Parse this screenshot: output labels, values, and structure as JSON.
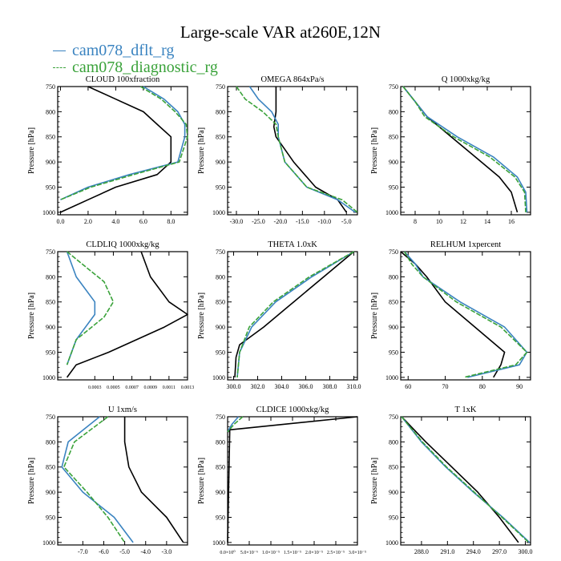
{
  "title": "Large-scale VAR at260E,12N",
  "legend": [
    {
      "name": "cam078_dflt_rg",
      "color": "#3a83c0",
      "dash": "none"
    },
    {
      "name": "cam078_diagnostic_rg",
      "color": "#3aa23a",
      "dash": "6,2"
    }
  ],
  "colors": {
    "obs": "#000000"
  },
  "ylabel": "Pressure [hPa]",
  "chart_data": [
    {
      "type": "line",
      "title": "CLOUD  100xfraction",
      "xlim": [
        -0.2,
        9.2
      ],
      "xticks": [
        0,
        2,
        4,
        6,
        8
      ],
      "xticklabels": [
        "0.0",
        "2.0",
        "4.0",
        "6.0",
        "8.0"
      ],
      "ylim": [
        1005,
        750
      ],
      "yticks": [
        750,
        800,
        850,
        900,
        950,
        1000
      ],
      "series": [
        {
          "role": "black",
          "x": [
            2,
            4,
            6,
            7,
            8,
            8,
            7,
            4,
            2,
            0
          ],
          "y": [
            750,
            775,
            800,
            825,
            850,
            900,
            925,
            950,
            975,
            1000
          ]
        },
        {
          "role": "blue",
          "x": [
            6,
            7.5,
            8.5,
            9,
            9,
            8.5,
            5,
            2,
            0
          ],
          "y": [
            750,
            775,
            800,
            825,
            850,
            900,
            925,
            950,
            975
          ]
        },
        {
          "role": "green",
          "x": [
            5.8,
            7.3,
            8.3,
            9.1,
            9.2,
            8.6,
            5.3,
            2.2,
            0
          ],
          "y": [
            750,
            775,
            800,
            825,
            850,
            900,
            925,
            950,
            975
          ]
        }
      ]
    },
    {
      "type": "line",
      "title": "OMEGA  864xPa/s",
      "xlim": [
        -32,
        -2.5
      ],
      "xticks": [
        -30,
        -25,
        -20,
        -15,
        -10,
        -5
      ],
      "xticklabels": [
        "-30.0",
        "-25.0",
        "-20.0",
        "-15.0",
        "-10.0",
        "-5.0"
      ],
      "ylim": [
        1005,
        750
      ],
      "yticks": [
        750,
        800,
        850,
        900,
        950,
        1000
      ],
      "series": [
        {
          "role": "black",
          "x": [
            -21,
            -21,
            -21,
            -21.5,
            -21,
            -17,
            -12,
            -7,
            -5
          ],
          "y": [
            750,
            775,
            800,
            830,
            850,
            900,
            950,
            975,
            1000
          ]
        },
        {
          "role": "blue",
          "x": [
            -27,
            -25,
            -22,
            -20.5,
            -20.5,
            -19,
            -14,
            -7,
            -3
          ],
          "y": [
            750,
            775,
            800,
            825,
            850,
            900,
            950,
            975,
            1000
          ]
        },
        {
          "role": "green",
          "x": [
            -30,
            -28,
            -24,
            -21,
            -20.5,
            -19,
            -14,
            -6,
            -2.5
          ],
          "y": [
            750,
            775,
            800,
            825,
            850,
            900,
            950,
            975,
            1000
          ]
        }
      ]
    },
    {
      "type": "line",
      "title": "Q  1000xkg/kg",
      "xlim": [
        6.8,
        17.6
      ],
      "xticks": [
        8,
        10,
        12,
        14,
        16
      ],
      "xticklabels": [
        "8",
        "10",
        "12",
        "14",
        "16"
      ],
      "ylim": [
        1005,
        750
      ],
      "yticks": [
        750,
        800,
        850,
        900,
        950,
        1000
      ],
      "series": [
        {
          "role": "black",
          "x": [
            7,
            8,
            9,
            11,
            13,
            15,
            16,
            16.5
          ],
          "y": [
            750,
            780,
            810,
            850,
            890,
            930,
            960,
            1000
          ]
        },
        {
          "role": "blue",
          "x": [
            7,
            8,
            9,
            11.5,
            14.5,
            16.5,
            17.2,
            17.3
          ],
          "y": [
            750,
            780,
            810,
            850,
            890,
            930,
            960,
            1000
          ]
        },
        {
          "role": "green",
          "x": [
            7,
            8,
            8.8,
            11.2,
            14.2,
            16.3,
            17.1,
            17.2
          ],
          "y": [
            750,
            780,
            810,
            850,
            890,
            930,
            960,
            1000
          ]
        }
      ]
    },
    {
      "type": "line",
      "title": "CLDLIQ  1000xkg/kg",
      "xlim": [
        -0.0001,
        0.0013
      ],
      "xticks": [
        0.0003,
        0.0005,
        0.0007,
        0.0009,
        0.0011,
        0.0013
      ],
      "xticklabels": [
        "0.0003",
        "0.0005",
        "0.0007",
        "0.0009",
        "0.0011",
        "0.0013"
      ],
      "ylim": [
        1005,
        750
      ],
      "yticks": [
        750,
        800,
        850,
        900,
        950,
        1000
      ],
      "series": [
        {
          "role": "black",
          "x": [
            0.0008,
            0.0009,
            0.0011,
            0.0013,
            0.00105,
            0.00045,
            0.0001,
            0
          ],
          "y": [
            750,
            800,
            850,
            875,
            900,
            950,
            975,
            1000
          ]
        },
        {
          "role": "blue",
          "x": [
            0,
            0.0001,
            0.0003,
            0.0003,
            0.0001,
            0
          ],
          "y": [
            750,
            800,
            850,
            875,
            925,
            975
          ]
        },
        {
          "role": "green",
          "x": [
            0,
            0.0002,
            0.0004,
            0.0005,
            0.0004,
            0.0001,
            0
          ],
          "y": [
            750,
            780,
            810,
            850,
            880,
            925,
            975
          ]
        }
      ]
    },
    {
      "type": "line",
      "title": "THETA  1.0xK",
      "xlim": [
        299.5,
        310.3
      ],
      "xticks": [
        300,
        302,
        304,
        306,
        308,
        310
      ],
      "xticklabels": [
        "300.0",
        "302.0",
        "304.0",
        "306.0",
        "308.0",
        "310.0"
      ],
      "ylim": [
        1005,
        750
      ],
      "yticks": [
        750,
        800,
        850,
        900,
        950,
        1000
      ],
      "series": [
        {
          "role": "black",
          "x": [
            310,
            307.5,
            305,
            302.5,
            300.5,
            300.2,
            300.1
          ],
          "y": [
            750,
            800,
            850,
            900,
            935,
            960,
            1000
          ]
        },
        {
          "role": "blue",
          "x": [
            310,
            306.5,
            303.5,
            301.5,
            300.5,
            300.3
          ],
          "y": [
            750,
            800,
            850,
            900,
            950,
            1000
          ]
        },
        {
          "role": "green",
          "x": [
            310,
            306.3,
            303.3,
            301.3,
            300.5,
            300.3
          ],
          "y": [
            750,
            800,
            850,
            900,
            950,
            1000
          ]
        }
      ]
    },
    {
      "type": "line",
      "title": "RELHUM  1xpercent",
      "xlim": [
        58,
        93
      ],
      "xticks": [
        60,
        70,
        80,
        90
      ],
      "xticklabels": [
        "60",
        "70",
        "80",
        "90"
      ],
      "ylim": [
        1005,
        750
      ],
      "yticks": [
        750,
        800,
        850,
        900,
        950,
        1000
      ],
      "series": [
        {
          "role": "black",
          "x": [
            58,
            62,
            65,
            70,
            78,
            86,
            85,
            83
          ],
          "y": [
            750,
            775,
            800,
            850,
            900,
            950,
            975,
            1000
          ]
        },
        {
          "role": "blue",
          "x": [
            59,
            62,
            64,
            74,
            86,
            92,
            90,
            76
          ],
          "y": [
            750,
            775,
            800,
            850,
            900,
            950,
            975,
            1000
          ]
        },
        {
          "role": "green",
          "x": [
            59,
            61,
            64,
            73,
            85,
            92,
            89,
            75
          ],
          "y": [
            750,
            775,
            800,
            850,
            900,
            950,
            975,
            1000
          ]
        }
      ]
    },
    {
      "type": "line",
      "title": "U  1xm/s",
      "xlim": [
        -8.2,
        -2
      ],
      "xticks": [
        -7,
        -6,
        -5,
        -4,
        -3
      ],
      "xticklabels": [
        "-7.0",
        "-6.0",
        "-5.0",
        "-4.0",
        "-3.0"
      ],
      "ylim": [
        1005,
        750
      ],
      "yticks": [
        750,
        800,
        850,
        900,
        950,
        1000
      ],
      "series": [
        {
          "role": "black",
          "x": [
            -5,
            -5,
            -4.8,
            -4.2,
            -3,
            -2.2
          ],
          "y": [
            750,
            800,
            850,
            900,
            950,
            1000
          ]
        },
        {
          "role": "blue",
          "x": [
            -6.2,
            -7.7,
            -8,
            -7,
            -5.5,
            -4.6
          ],
          "y": [
            750,
            800,
            850,
            900,
            950,
            1000
          ]
        },
        {
          "role": "green",
          "x": [
            -5.8,
            -7.4,
            -7.9,
            -6.8,
            -5.8,
            -5
          ],
          "y": [
            750,
            800,
            850,
            900,
            950,
            1000
          ]
        }
      ]
    },
    {
      "type": "line",
      "title": "CLDICE  1000xkg/kg",
      "xlim": [
        0,
        3e-05
      ],
      "xticks": [
        0,
        5e-06,
        1e-05,
        1.5e-05,
        2e-05,
        2.5e-05,
        3e-05
      ],
      "xticklabels": [
        "0.0×10⁰",
        "5.0×10⁻⁶",
        "1.0×10⁻⁵",
        "1.5×10⁻⁵",
        "2.0×10⁻⁵",
        "2.5×10⁻⁵",
        "3.0×10⁻⁵"
      ],
      "ylim": [
        1005,
        750
      ],
      "yticks": [
        750,
        800,
        850,
        900,
        950,
        1000
      ],
      "series": [
        {
          "role": "black",
          "x": [
            3e-05,
            5e-07,
            0
          ],
          "y": [
            750,
            776,
            1000
          ]
        },
        {
          "role": "blue",
          "x": [
            2.5e-06,
            1e-06,
            0
          ],
          "y": [
            750,
            765,
            780
          ]
        },
        {
          "role": "green",
          "x": [
            3.5e-06,
            1.5e-06,
            0
          ],
          "y": [
            750,
            765,
            780
          ]
        }
      ]
    },
    {
      "type": "line",
      "title": "T  1xK",
      "xlim": [
        285.6,
        300.6
      ],
      "xticks": [
        288,
        291,
        294,
        297,
        300
      ],
      "xticklabels": [
        "288.0",
        "291.0",
        "294.0",
        "297.0",
        "300.0"
      ],
      "ylim": [
        1005,
        750
      ],
      "yticks": [
        750,
        800,
        850,
        900,
        950,
        1000
      ],
      "series": [
        {
          "role": "black",
          "x": [
            285.7,
            288.5,
            291.5,
            294.5,
            297,
            299.2
          ],
          "y": [
            750,
            800,
            850,
            900,
            950,
            1000
          ]
        },
        {
          "role": "blue",
          "x": [
            285.7,
            288,
            290.8,
            294,
            297.4,
            300.5
          ],
          "y": [
            750,
            800,
            850,
            900,
            950,
            1000
          ]
        },
        {
          "role": "green",
          "x": [
            285.7,
            288.1,
            290.9,
            294.1,
            297.3,
            300.4
          ],
          "y": [
            750,
            800,
            850,
            900,
            950,
            1000
          ]
        }
      ]
    }
  ]
}
